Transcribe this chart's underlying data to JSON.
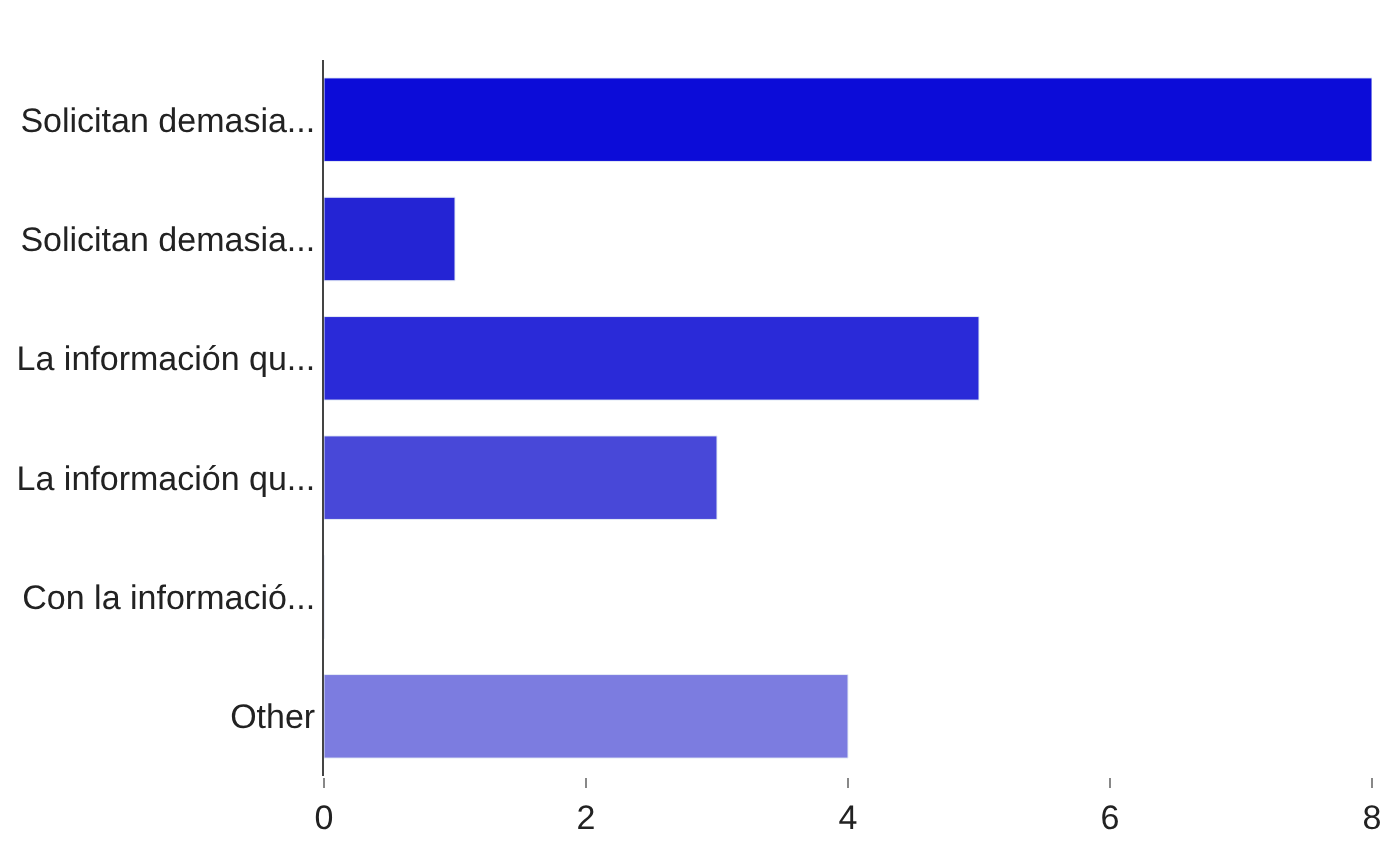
{
  "chart_data": {
    "type": "bar",
    "orientation": "horizontal",
    "categories": [
      "Solicitan demasia...",
      "Solicitan demasia...",
      "La información qu...",
      "La información qu...",
      "Con la informació...",
      "Other"
    ],
    "values": [
      8,
      1,
      5,
      3,
      0,
      4
    ],
    "colors": [
      "#0c0cd8",
      "#2424d4",
      "#2a2ad8",
      "#4848d8",
      null,
      "#7c7ce0"
    ],
    "xlim": [
      0,
      8
    ],
    "xticks": [
      0,
      2,
      4,
      6,
      8
    ],
    "legend": false
  }
}
